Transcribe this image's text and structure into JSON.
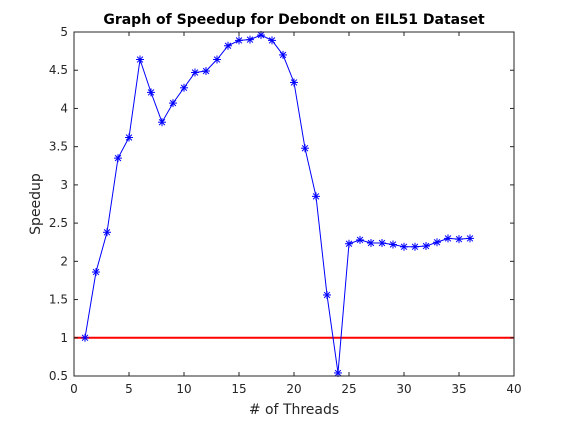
{
  "chart_data": {
    "type": "line",
    "title": "Graph of Speedup for Debondt on EIL51 Dataset",
    "xlabel": "# of Threads",
    "ylabel": "Speedup",
    "xlim": [
      0,
      40
    ],
    "ylim": [
      0.5,
      5
    ],
    "xticks": [
      "0",
      "5",
      "10",
      "15",
      "20",
      "25",
      "30",
      "35",
      "40"
    ],
    "yticks": [
      "0.5",
      "1",
      "1.5",
      "2",
      "2.5",
      "3",
      "3.5",
      "4",
      "4.5",
      "5"
    ],
    "grid": false,
    "box": true,
    "series": [
      {
        "color": "#0000ff",
        "marker": "asterisk",
        "x": [
          1,
          2,
          3,
          4,
          5,
          6,
          7,
          8,
          9,
          10,
          11,
          12,
          13,
          14,
          15,
          16,
          17,
          18,
          19,
          20,
          21,
          22,
          23,
          24,
          25,
          26,
          27,
          28,
          29,
          30,
          31,
          32,
          33,
          34,
          35,
          36
        ],
        "y": [
          1.0,
          1.86,
          2.38,
          3.35,
          3.62,
          4.64,
          4.21,
          3.82,
          4.07,
          4.27,
          4.47,
          4.49,
          4.64,
          4.82,
          4.89,
          4.9,
          4.96,
          4.89,
          4.7,
          4.34,
          3.48,
          2.85,
          1.56,
          0.54,
          2.23,
          2.28,
          2.24,
          2.24,
          2.22,
          2.19,
          2.19,
          2.2,
          2.25,
          2.3,
          2.29,
          2.3
        ]
      }
    ],
    "reference_lines": [
      {
        "y": 1,
        "color": "#ff0000"
      }
    ]
  }
}
